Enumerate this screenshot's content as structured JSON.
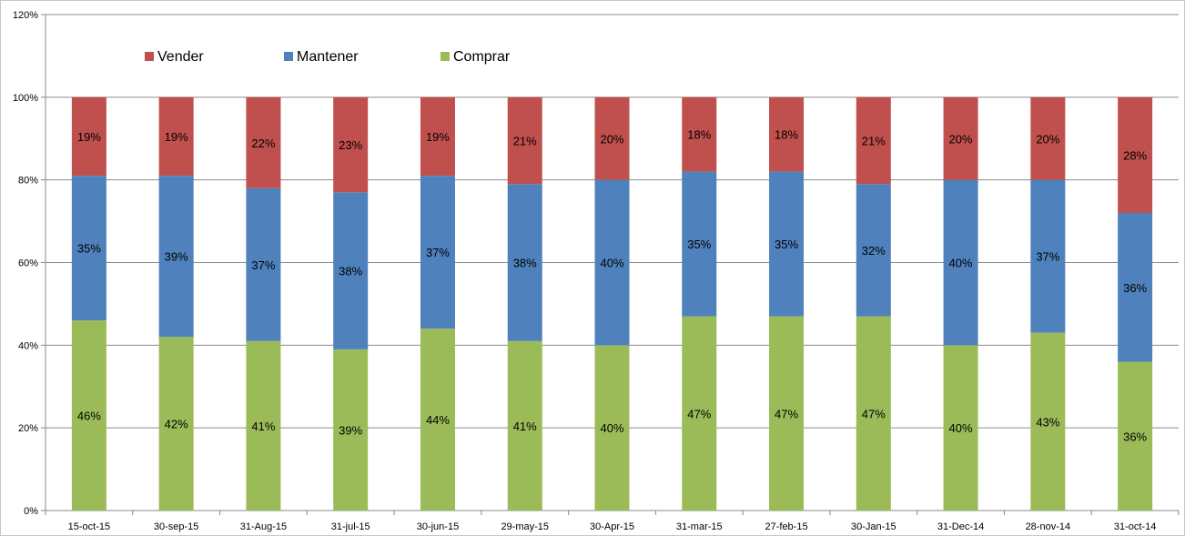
{
  "chart_data": {
    "type": "stacked-bar",
    "categories": [
      "15-oct-15",
      "30-sep-15",
      "31-Aug-15",
      "31-jul-15",
      "30-jun-15",
      "29-may-15",
      "30-Apr-15",
      "31-mar-15",
      "27-feb-15",
      "30-Jan-15",
      "31-Dec-14",
      "28-nov-14",
      "31-oct-14"
    ],
    "series": [
      {
        "name": "Comprar",
        "color": "#9BBB59",
        "values": [
          46,
          42,
          41,
          39,
          44,
          41,
          40,
          47,
          47,
          47,
          40,
          43,
          36
        ]
      },
      {
        "name": "Mantener",
        "color": "#4F81BD",
        "values": [
          35,
          39,
          37,
          38,
          37,
          38,
          40,
          35,
          35,
          32,
          40,
          37,
          36
        ]
      },
      {
        "name": "Vender",
        "color": "#C0504D",
        "values": [
          19,
          19,
          22,
          23,
          19,
          21,
          20,
          18,
          18,
          21,
          20,
          20,
          28
        ]
      }
    ],
    "legend_order": [
      "Vender",
      "Mantener",
      "Comprar"
    ],
    "legend_position": "top-left",
    "ylim": [
      0,
      120
    ],
    "yticks": [
      "0%",
      "20%",
      "40%",
      "60%",
      "80%",
      "100%",
      "120%"
    ],
    "grid": true,
    "title": "",
    "xlabel": "",
    "ylabel": ""
  }
}
